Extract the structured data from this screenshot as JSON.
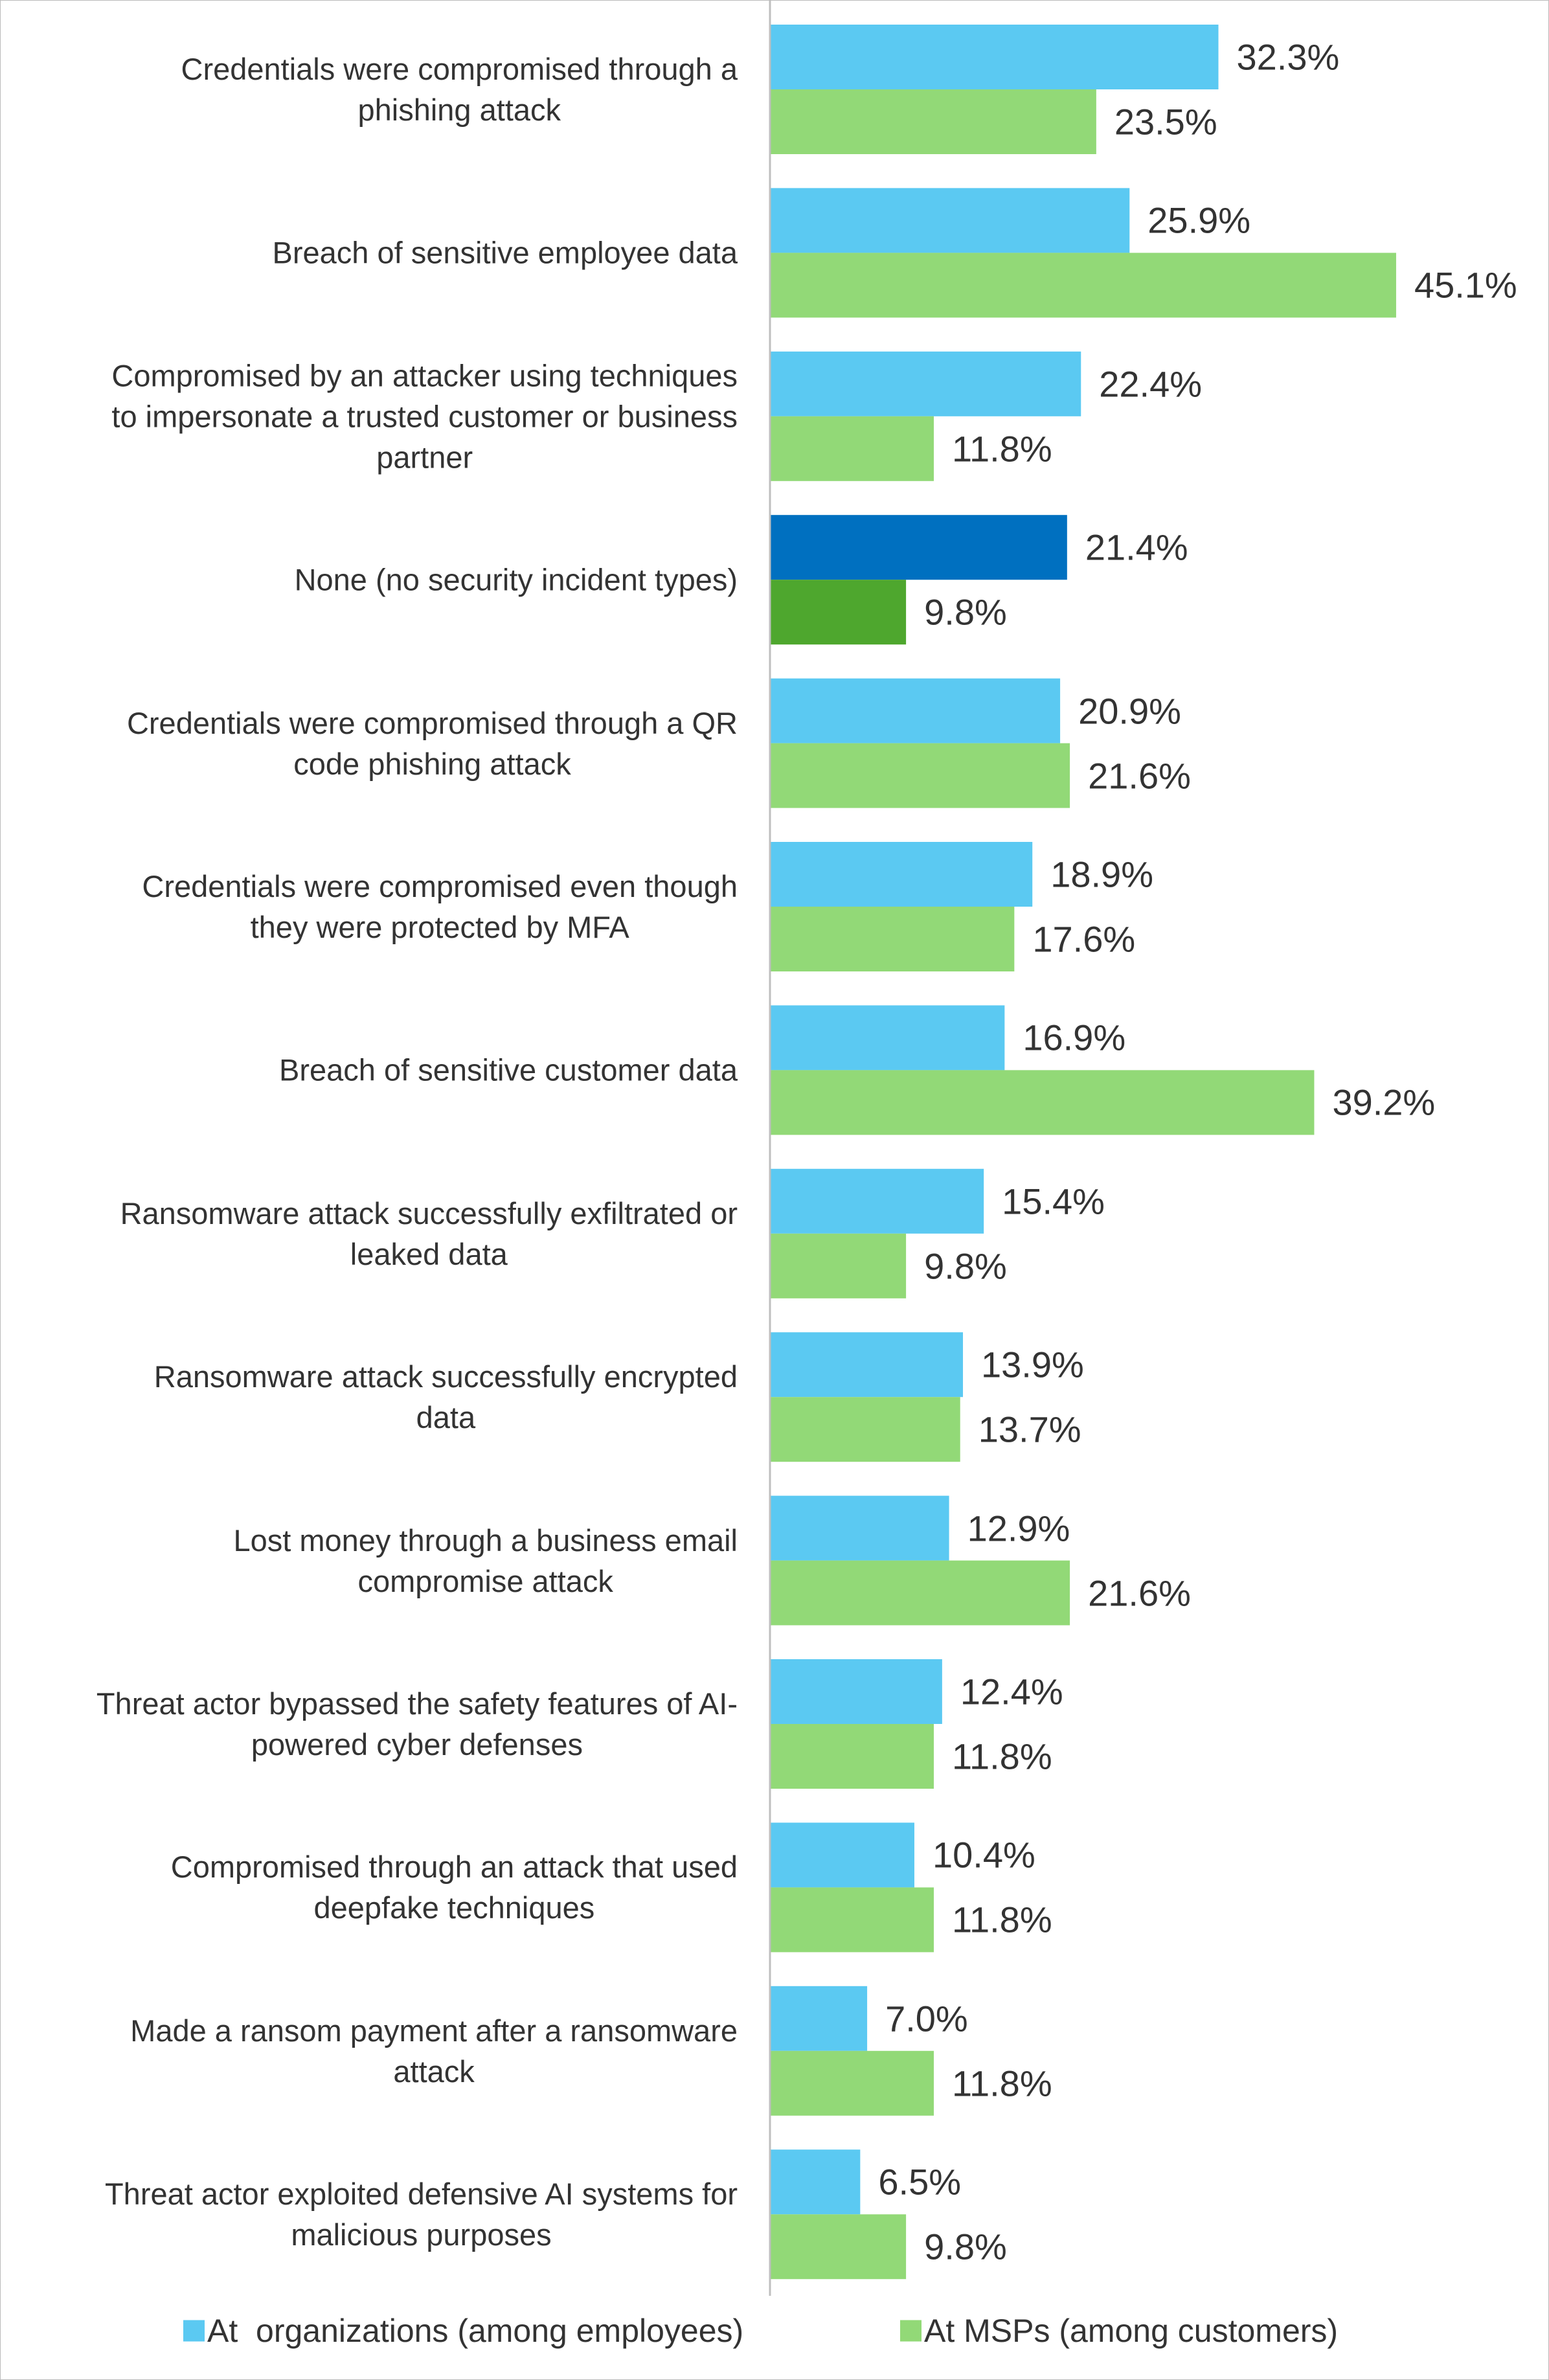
{
  "chart_data": {
    "type": "bar",
    "orientation": "horizontal",
    "categories": [
      "Credentials were compromised through a\nphishing attack",
      "Breach of sensitive employee data",
      "Compromised by an attacker using techniques\nto impersonate a trusted customer or business\npartner",
      "None (no security incident types)",
      "Credentials were compromised through a QR\ncode phishing attack",
      "Credentials were compromised even though\nthey were protected by MFA",
      "Breach of sensitive customer data",
      "Ransomware attack successfully exfiltrated or\nleaked data",
      "Ransomware attack successfully encrypted\ndata",
      "Lost money through a business email\ncompromise attack",
      "Threat actor bypassed the safety features of AI-\npowered cyber defenses",
      "Compromised through an attack that used\ndeepfake techniques",
      "Made a ransom payment after a ransomware\nattack",
      "Threat actor exploited defensive AI systems for\nmalicious purposes"
    ],
    "series": [
      {
        "name": "At  organizations (among employees)",
        "color": "#5bc9f2",
        "colors": [
          "#5bc9f2",
          "#5bc9f2",
          "#5bc9f2",
          "#0070c0",
          "#5bc9f2",
          "#5bc9f2",
          "#5bc9f2",
          "#5bc9f2",
          "#5bc9f2",
          "#5bc9f2",
          "#5bc9f2",
          "#5bc9f2",
          "#5bc9f2",
          "#5bc9f2"
        ],
        "values": [
          32.3,
          25.9,
          22.4,
          21.4,
          20.9,
          18.9,
          16.9,
          15.4,
          13.9,
          12.9,
          12.4,
          10.4,
          7.0,
          6.5
        ],
        "value_labels": [
          "32.3%",
          "25.9%",
          "22.4%",
          "21.4%",
          "20.9%",
          "18.9%",
          "16.9%",
          "15.4%",
          "13.9%",
          "12.9%",
          "12.4%",
          "10.4%",
          "7.0%",
          "6.5%"
        ]
      },
      {
        "name": "At MSPs (among customers)",
        "color": "#92d977",
        "colors": [
          "#92d977",
          "#92d977",
          "#92d977",
          "#4ea72e",
          "#92d977",
          "#92d977",
          "#92d977",
          "#92d977",
          "#92d977",
          "#92d977",
          "#92d977",
          "#92d977",
          "#92d977",
          "#92d977"
        ],
        "values": [
          23.5,
          45.1,
          11.8,
          9.8,
          21.6,
          17.6,
          39.2,
          9.8,
          13.7,
          21.6,
          11.8,
          11.8,
          11.8,
          9.8
        ],
        "value_labels": [
          "23.5%",
          "45.1%",
          "11.8%",
          "9.8%",
          "21.6%",
          "17.6%",
          "39.2%",
          "9.8%",
          "13.7%",
          "21.6%",
          "11.8%",
          "11.8%",
          "11.8%",
          "9.8%"
        ]
      }
    ],
    "xlim": [
      0,
      50
    ],
    "legend": "bottom"
  }
}
